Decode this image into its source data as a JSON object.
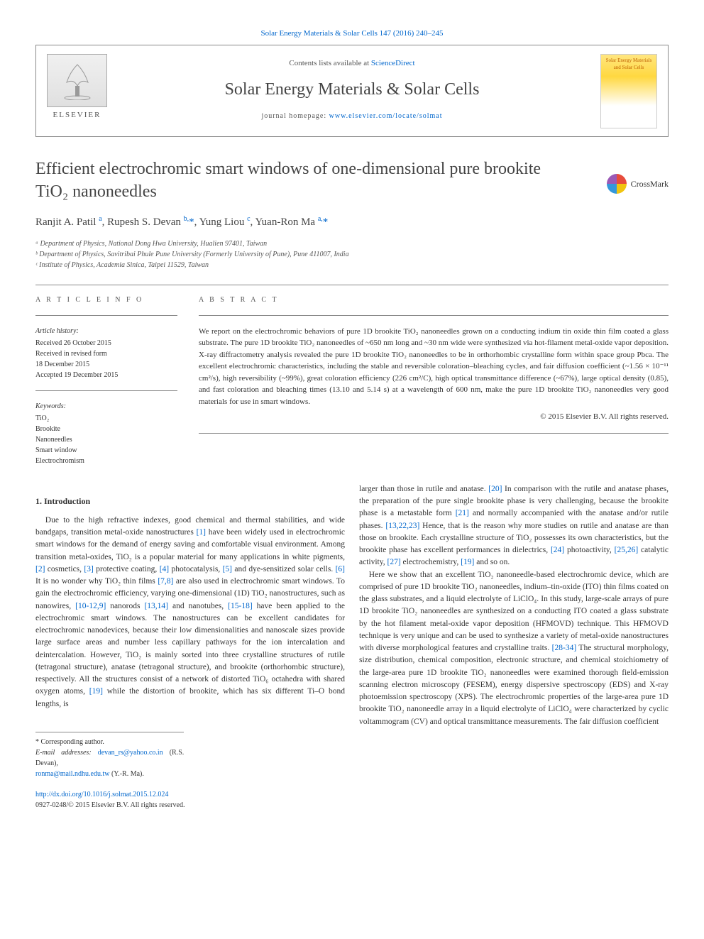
{
  "top_link": "Solar Energy Materials & Solar Cells 147 (2016) 240–245",
  "header": {
    "contents_prefix": "Contents lists available at ",
    "sciencedirect": "ScienceDirect",
    "journal_title": "Solar Energy Materials & Solar Cells",
    "homepage_prefix": "journal homepage: ",
    "homepage_url": "www.elsevier.com/locate/solmat",
    "elsevier_label": "ELSEVIER",
    "cover_text": "Solar Energy Materials and Solar Cells"
  },
  "crossmark_label": "CrossMark",
  "title": "Efficient electrochromic smart windows of one-dimensional pure brookite TiO₂ nanoneedles",
  "authors_html": "Ranjit A. Patil <sup>a</sup>, Rupesh S. Devan <sup>b,</sup><span class='star'>*</span>, Yung Liou <sup>c</sup>, Yuan-Ron Ma <sup>a,</sup><span class='star'>*</span>",
  "affiliations": [
    "ᵃ Department of Physics, National Dong Hwa University, Hualien 97401, Taiwan",
    "ᵇ Department of Physics, Savitribai Phule Pune University (Formerly University of Pune), Pune 411007, India",
    "ᶜ Institute of Physics, Academia Sinica, Taipei 11529, Taiwan"
  ],
  "article_info": {
    "heading": "A R T I C L E  I N F O",
    "history_label": "Article history:",
    "history": [
      "Received 26 October 2015",
      "Received in revised form",
      "18 December 2015",
      "Accepted 19 December 2015"
    ],
    "keywords_label": "Keywords:",
    "keywords": [
      "TiO₂",
      "Brookite",
      "Nanoneedles",
      "Smart window",
      "Electrochromism"
    ]
  },
  "abstract": {
    "heading": "A B S T R A C T",
    "text": "We report on the electrochromic behaviors of pure 1D brookite TiO₂ nanoneedles grown on a conducting indium tin oxide thin film coated a glass substrate. The pure 1D brookite TiO₂ nanoneedles of ~650 nm long and ~30 nm wide were synthesized via hot-filament metal-oxide vapor deposition. X-ray diffractometry analysis revealed the pure 1D brookite TiO₂ nanoneedles to be in orthorhombic crystalline form within space group Pbca. The excellent electrochromic characteristics, including the stable and reversible coloration–bleaching cycles, and fair diffusion coefficient (~1.56 × 10⁻¹¹ cm²/s), high reversibility (~99%), great coloration efficiency (226 cm²/C), high optical transmittance difference (~67%), large optical density (0.85), and fast coloration and bleaching times (13.10 and 5.14 s) at a wavelength of 600 nm, make the pure 1D brookite TiO₂ nanoneedles very good materials for use in smart windows.",
    "copyright": "© 2015 Elsevier B.V. All rights reserved."
  },
  "intro_heading": "1. Introduction",
  "body": {
    "col1_p1": "Due to the high refractive indexes, good chemical and thermal stabilities, and wide bandgaps, transition metal-oxide nanostructures [1] have been widely used in electrochromic smart windows for the demand of energy saving and comfortable visual environment. Among transition metal-oxides, TiO₂ is a popular material for many applications in white pigments, [2] cosmetics, [3] protective coating, [4] photocatalysis, [5] and dye-sensitized solar cells. [6] It is no wonder why TiO₂ thin films [7,8] are also used in electrochromic smart windows. To gain the electrochromic efficiency, varying one-dimensional (1D) TiO₂ nanostructures, such as nanowires, [10-12,9] nanorods [13,14] and nanotubes, [15-18] have been applied to the electrochromic smart windows. The nanostructures can be excellent candidates for electrochromic nanodevices, because their low dimensionalities and nanoscale sizes provide large surface areas and number less capillary pathways for the ion intercalation and deintercalation. However, TiO₂ is mainly sorted into three crystalline structures of rutile (tetragonal structure), anatase (tetragonal structure), and brookite (orthorhombic structure), respectively. All the structures consist of a network of distorted TiO₆ octahedra with shared oxygen atoms, [19] while the distortion of brookite, which has six different Ti–O bond lengths, is",
    "col2_p1": "larger than those in rutile and anatase. [20] In comparison with the rutile and anatase phases, the preparation of the pure single brookite phase is very challenging, because the brookite phase is a metastable form [21] and normally accompanied with the anatase and/or rutile phases. [13,22,23] Hence, that is the reason why more studies on rutile and anatase are than those on brookite. Each crystalline structure of TiO₂ possesses its own characteristics, but the brookite phase has excellent performances in dielectrics, [24] photoactivity, [25,26] catalytic activity, [27] electrochemistry, [19] and so on.",
    "col2_p2": "Here we show that an excellent TiO₂ nanoneedle-based electrochromic device, which are comprised of pure 1D brookite TiO₂ nanoneedles, indium–tin-oxide (ITO) thin films coated on the glass substrates, and a liquid electrolyte of LiClO₄. In this study, large-scale arrays of pure 1D brookite TiO₂ nanoneedles are synthesized on a conducting ITO coated a glass substrate by the hot filament metal-oxide vapor deposition (HFMOVD) technique. This HFMOVD technique is very unique and can be used to synthesize a variety of metal-oxide nanostructures with diverse morphological features and crystalline traits. [28-34] The structural morphology, size distribution, chemical composition, electronic structure, and chemical stoichiometry of the large-area pure 1D brookite TiO₂ nanoneedles were examined thorough field-emission scanning electron microscopy (FESEM), energy dispersive spectroscopy (EDS) and X-ray photoemission spectroscopy (XPS). The electrochromic properties of the large-area pure 1D brookite TiO₂ nanoneedle array in a liquid electrolyte of LiClO₄ were characterized by cyclic voltammogram (CV) and optical transmittance measurements. The fair diffusion coefficient"
  },
  "footer": {
    "corr": "* Corresponding author.",
    "email_label": "E-mail addresses: ",
    "email1": "devan_rs@yahoo.co.in",
    "email1_name": " (R.S. Devan),",
    "email2": "ronma@mail.ndhu.edu.tw",
    "email2_name": " (Y.-R. Ma)."
  },
  "doi": {
    "link": "http://dx.doi.org/10.1016/j.solmat.2015.12.024",
    "issn": "0927-0248/© 2015 Elsevier B.V. All rights reserved."
  },
  "refs_col1": [
    "[1]",
    "[2]",
    "[3]",
    "[4]",
    "[5]",
    "[6]",
    "[7,8]",
    "[10-12,9]",
    "[13,14]",
    "[15-18]",
    "[19]"
  ],
  "refs_col2": [
    "[20]",
    "[21]",
    "[13,22,23]",
    "[24]",
    "[25,26]",
    "[27]",
    "[19]",
    "[28-34]"
  ],
  "colors": {
    "link": "#0066cc",
    "text": "#333333",
    "heading": "#444444",
    "rule": "#888888"
  }
}
